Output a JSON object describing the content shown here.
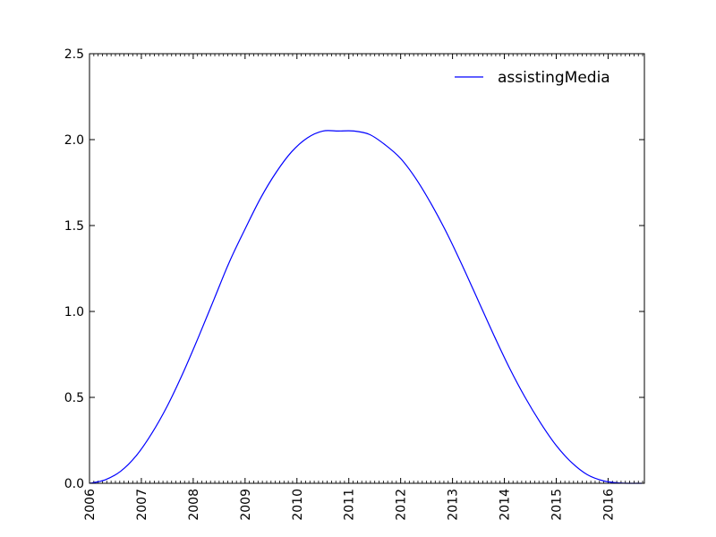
{
  "chart_data": {
    "type": "line",
    "title": "",
    "xlabel": "",
    "ylabel": "",
    "xlim": [
      2006.0,
      2016.7
    ],
    "ylim": [
      0.0,
      2.5
    ],
    "x_ticks": [
      2006,
      2007,
      2008,
      2009,
      2010,
      2011,
      2012,
      2013,
      2014,
      2015,
      2016
    ],
    "x_tick_labels": [
      "2006",
      "2007",
      "2008",
      "2009",
      "2010",
      "2011",
      "2012",
      "2013",
      "2014",
      "2015",
      "2016"
    ],
    "y_ticks": [
      0.0,
      0.5,
      1.0,
      1.5,
      2.0,
      2.5
    ],
    "y_tick_labels": [
      "0.0",
      "0.5",
      "1.0",
      "1.5",
      "2.0",
      "2.5"
    ],
    "grid": false,
    "legend_position": "top-right",
    "series": [
      {
        "name": "assistingMedia",
        "color": "#0000ff",
        "x": [
          2006.0,
          2006.3,
          2006.6,
          2006.9,
          2007.2,
          2007.5,
          2007.8,
          2008.1,
          2008.4,
          2008.7,
          2009.0,
          2009.3,
          2009.6,
          2009.9,
          2010.2,
          2010.5,
          2010.8,
          2011.1,
          2011.4,
          2011.7,
          2012.0,
          2012.3,
          2012.6,
          2012.9,
          2013.2,
          2013.5,
          2013.8,
          2014.1,
          2014.4,
          2014.7,
          2015.0,
          2015.3,
          2015.6,
          2015.9,
          2016.2,
          2016.5,
          2016.65
        ],
        "y": [
          0.0,
          0.02,
          0.07,
          0.16,
          0.29,
          0.45,
          0.64,
          0.85,
          1.07,
          1.29,
          1.48,
          1.66,
          1.81,
          1.93,
          2.01,
          2.05,
          2.05,
          2.05,
          2.03,
          1.97,
          1.89,
          1.77,
          1.62,
          1.45,
          1.26,
          1.06,
          0.86,
          0.67,
          0.5,
          0.35,
          0.22,
          0.12,
          0.05,
          0.015,
          0.002,
          0.0,
          0.0
        ]
      }
    ]
  }
}
